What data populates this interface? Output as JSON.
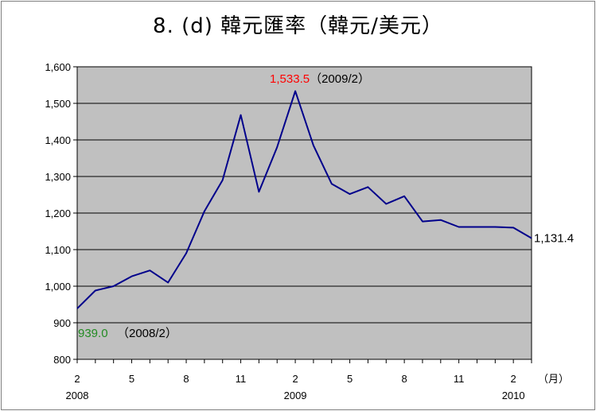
{
  "title": "8. (d)  韓元匯率（韓元/美元）",
  "chart_data": {
    "type": "line",
    "title": "8. (d)  韓元匯率（韓元/美元）",
    "xlabel": "（月）",
    "ylabel": "",
    "ylim": [
      800,
      1600
    ],
    "y_ticks": [
      "1,600",
      "1,500",
      "1,400",
      "1,300",
      "1,200",
      "1,100",
      "1,000",
      "900",
      "800"
    ],
    "y_tick_values": [
      1600,
      1500,
      1400,
      1300,
      1200,
      1100,
      1000,
      900,
      800
    ],
    "x_month_labels": [
      "2",
      "5",
      "8",
      "11",
      "2",
      "5",
      "8",
      "11",
      "2"
    ],
    "x_month_label_index": [
      0,
      3,
      6,
      9,
      12,
      15,
      18,
      21,
      24
    ],
    "x_year_labels": [
      "2008",
      "2009",
      "2010"
    ],
    "x_year_label_index": [
      0,
      12,
      24
    ],
    "x_unit_label": "（月）",
    "grid": true,
    "plot_background": "#c0c0c0",
    "line_color": "#00008b",
    "series": [
      {
        "values": [
          939.0,
          988,
          1000,
          1027,
          1043,
          1010,
          1090,
          1205,
          1290,
          1468,
          1258,
          1380,
          1533.5,
          1385,
          1280,
          1252,
          1271,
          1225,
          1246,
          1177,
          1181,
          1162,
          1162,
          1162,
          1160,
          1131.4
        ]
      }
    ],
    "annotations": {
      "max": {
        "index": 12,
        "value_text": "1,533.5",
        "date_text": "（2009/2）",
        "color": "#ff0000"
      },
      "min": {
        "index": 0,
        "value_text": "939.0",
        "date_text": "（2008/2）",
        "color": "#228b22"
      },
      "last": {
        "index": 25,
        "value_text": "1,131.4",
        "color": "#000000"
      }
    }
  }
}
